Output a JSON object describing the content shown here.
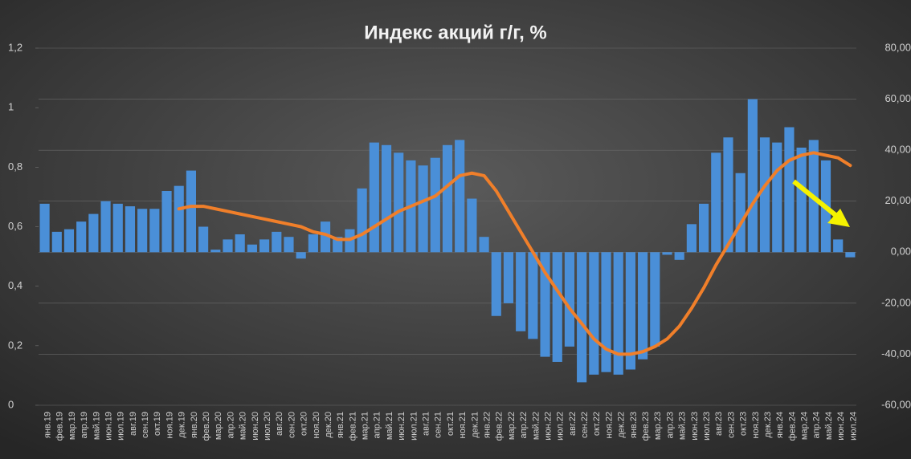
{
  "chart_data": {
    "type": "bar_line",
    "title": "Индекс акций г/г, %",
    "categories": [
      "янв.19",
      "фев.19",
      "мар.19",
      "апр.19",
      "май.19",
      "июн.19",
      "июл.19",
      "авг.19",
      "сен.19",
      "окт.19",
      "ноя.19",
      "дек.19",
      "янв.20",
      "фев.20",
      "мар.20",
      "апр.20",
      "май.20",
      "июн.20",
      "июл.20",
      "авг.20",
      "сен.20",
      "окт.20",
      "ноя.20",
      "дек.20",
      "янв.21",
      "фев.21",
      "мар.21",
      "апр.21",
      "май.21",
      "июн.21",
      "июл.21",
      "авг.21",
      "сен.21",
      "окт.21",
      "ноя.21",
      "дек.21",
      "янв.22",
      "фев.22",
      "мар.22",
      "апр.22",
      "май.22",
      "июн.22",
      "июл.22",
      "авг.22",
      "сен.22",
      "окт.22",
      "ноя.22",
      "дек.22",
      "янв.23",
      "фев.23",
      "мар.23",
      "апр.23",
      "май.23",
      "июн.23",
      "июл.23",
      "авг.23",
      "сен.23",
      "окт.23",
      "ноя.23",
      "дек.23",
      "янв.24",
      "фев.24",
      "мар.24",
      "апр.24",
      "май.24",
      "июн.24",
      "июл.24"
    ],
    "series": [
      {
        "type": "bar",
        "axis": "y2",
        "color": "#4a8fd8",
        "values": [
          19,
          8,
          9,
          12,
          15,
          20,
          19,
          18,
          17,
          17,
          24,
          26,
          32,
          10,
          1,
          5,
          7,
          3,
          5,
          8,
          6,
          -2.5,
          7,
          12,
          6,
          9,
          25,
          43,
          42,
          39,
          36,
          34,
          37,
          42,
          44,
          21,
          6,
          -25,
          -20,
          -31,
          -34,
          -41,
          -43,
          -37,
          -51,
          -48,
          -47,
          -48,
          -46,
          -42,
          -37,
          -1,
          -3,
          11,
          19,
          39,
          45,
          31,
          60,
          45,
          43,
          49,
          41,
          44,
          36,
          5,
          -2
        ]
      },
      {
        "type": "line",
        "axis": "y2",
        "color": "#f07f2a",
        "values": [
          null,
          null,
          null,
          null,
          null,
          null,
          null,
          null,
          null,
          null,
          null,
          17,
          18,
          18,
          17,
          16,
          15,
          14,
          13,
          12,
          11,
          10,
          8,
          7,
          5,
          5,
          7,
          10,
          13,
          16,
          18,
          20,
          22,
          26,
          30,
          31,
          30,
          24,
          16,
          8,
          0,
          -8,
          -15,
          -22,
          -28,
          -34,
          -38,
          -40,
          -40,
          -39,
          -37,
          -34,
          -29,
          -22,
          -14,
          -5,
          3,
          11,
          19,
          26,
          32,
          36,
          38,
          39,
          38,
          37,
          34
        ]
      }
    ],
    "ylim": [
      0,
      1.2
    ],
    "yticks": [
      {
        "value": 0,
        "label": "0"
      },
      {
        "value": 0.2,
        "label": "0,2"
      },
      {
        "value": 0.4,
        "label": "0,4"
      },
      {
        "value": 0.6,
        "label": "0,6"
      },
      {
        "value": 0.8,
        "label": "0,8"
      },
      {
        "value": 1,
        "label": "1"
      },
      {
        "value": 1.2,
        "label": "1,2"
      }
    ],
    "y2lim": [
      -60,
      80
    ],
    "y2ticks": [
      {
        "value": -60,
        "label": "-60,00"
      },
      {
        "value": -40,
        "label": "-40,00"
      },
      {
        "value": -20,
        "label": "-20,00"
      },
      {
        "value": 0,
        "label": "0,00"
      },
      {
        "value": 20,
        "label": "20,00"
      },
      {
        "value": 40,
        "label": "40,00"
      },
      {
        "value": 60,
        "label": "60,00"
      },
      {
        "value": 80,
        "label": "80,00"
      }
    ],
    "grid": true
  }
}
